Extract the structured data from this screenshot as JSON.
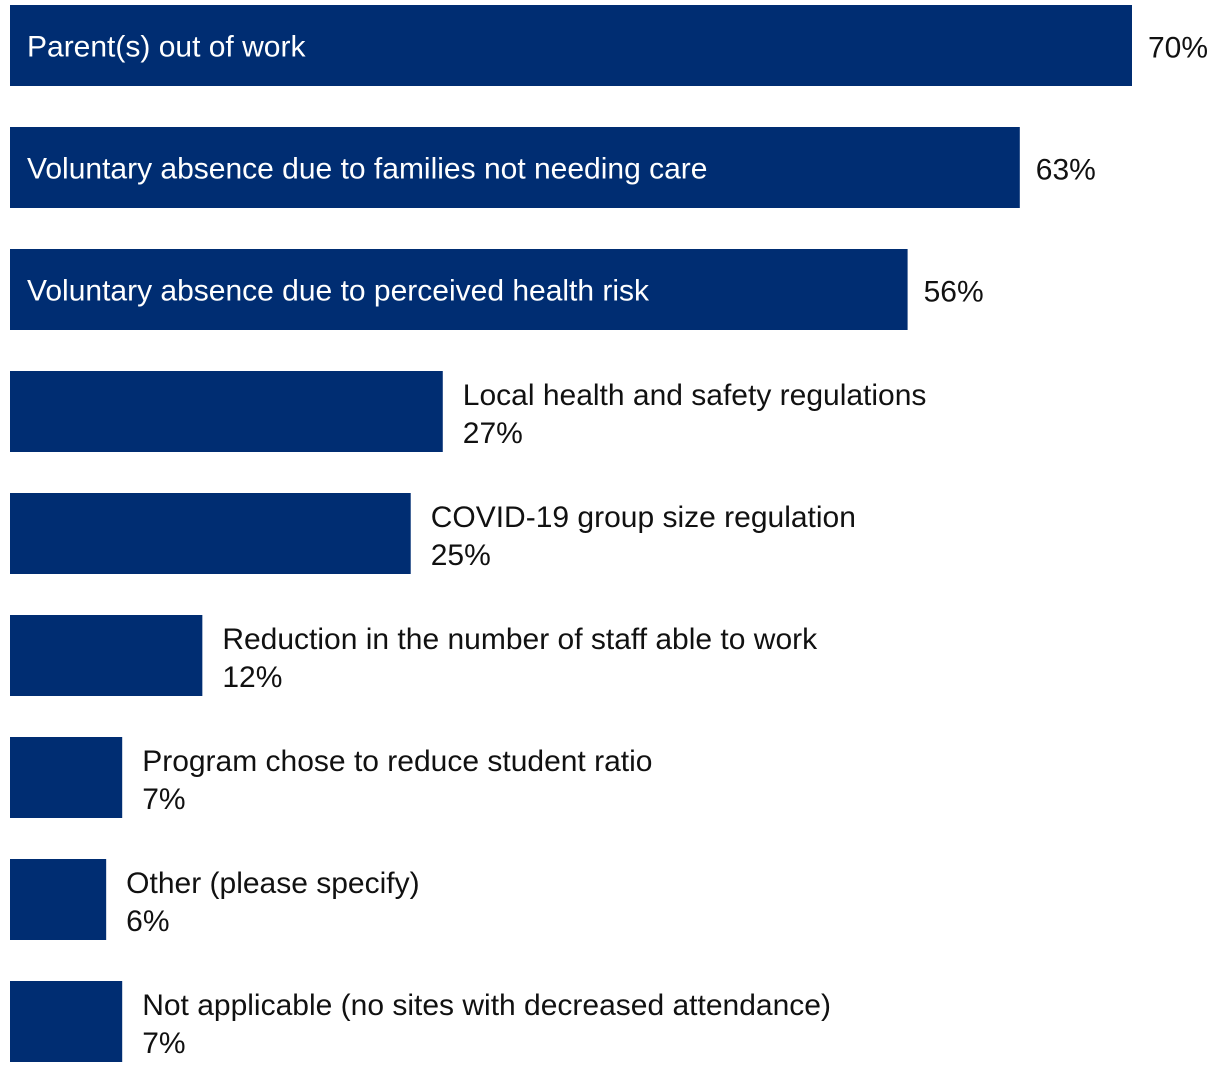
{
  "chart_data": {
    "type": "bar",
    "orientation": "horizontal",
    "categories": [
      "Parent(s) out of work",
      "Voluntary absence due to families not needing care",
      "Voluntary absence due to perceived health risk",
      "Local health and safety regulations",
      "COVID-19 group size regulation",
      "Reduction in the number of staff able to work",
      "Program chose to reduce student ratio",
      "Other (please specify)",
      "Not applicable (no sites with decreased attendance)"
    ],
    "values": [
      70,
      63,
      56,
      27,
      25,
      12,
      7,
      6,
      7
    ],
    "value_labels": [
      "70%",
      "63%",
      "56%",
      "27%",
      "25%",
      "12%",
      "7%",
      "6%",
      "7%"
    ],
    "label_inside_bar": [
      true,
      true,
      true,
      false,
      false,
      false,
      false,
      false,
      false
    ],
    "xlim": [
      0,
      70
    ],
    "grid": false,
    "legend": "none",
    "bar_color": "#002D72",
    "inside_label_color": "#FFFFFF",
    "outside_text_color": "#111111"
  }
}
